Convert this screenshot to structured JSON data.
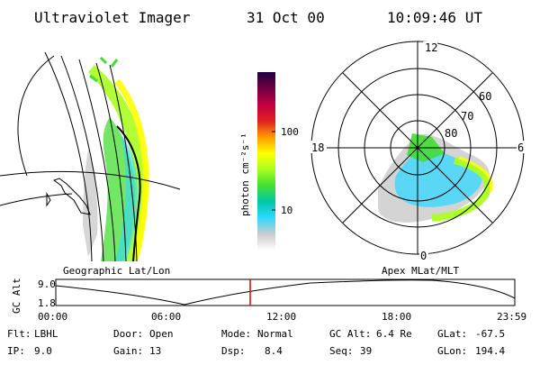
{
  "header": {
    "title": "Ultraviolet Imager",
    "date": "31 Oct 00",
    "time": "10:09:46 UT"
  },
  "left_panel": {
    "label": "Geographic Lat/Lon"
  },
  "colorbar": {
    "unit_label": "photon cm⁻²s⁻¹",
    "ticks": [
      "100",
      "10"
    ],
    "colors": [
      "#ffffff",
      "#cccccc",
      "#30d8ff",
      "#00c8a8",
      "#44dd33",
      "#aaff22",
      "#ffff00",
      "#ff9900",
      "#e02020",
      "#c00040",
      "#700040",
      "#200040"
    ]
  },
  "polar_panel": {
    "label": "Apex MLat/MLT",
    "mlt_labels": {
      "top": "12",
      "left": "18",
      "right": "6",
      "bottom": "0"
    },
    "lat_labels": [
      "60",
      "70",
      "80"
    ]
  },
  "altitude_plot": {
    "ylabel": "GC Alt",
    "yticks": [
      "9.0",
      "1.8"
    ],
    "xticks": [
      "00:00",
      "06:00",
      "12:00",
      "18:00",
      "23:59"
    ],
    "current_time_fraction": 0.4235
  },
  "status": {
    "rows": [
      [
        {
          "key": "Flt:",
          "value": "LBHL"
        },
        {
          "key": "Door:",
          "value": "Open"
        },
        {
          "key": "Mode:",
          "value": "Normal"
        },
        {
          "key": "GC Alt:",
          "value": "6.4 Re"
        },
        {
          "key": "GLat:",
          "value": "-67.5"
        }
      ],
      [
        {
          "key": "IP:",
          "value": "9.0"
        },
        {
          "key": "Gain:",
          "value": "13"
        },
        {
          "key": "Dsp:",
          "value": "8.4"
        },
        {
          "key": "Seq:",
          "value": "39"
        },
        {
          "key": "GLon:",
          "value": "194.4"
        }
      ]
    ]
  }
}
